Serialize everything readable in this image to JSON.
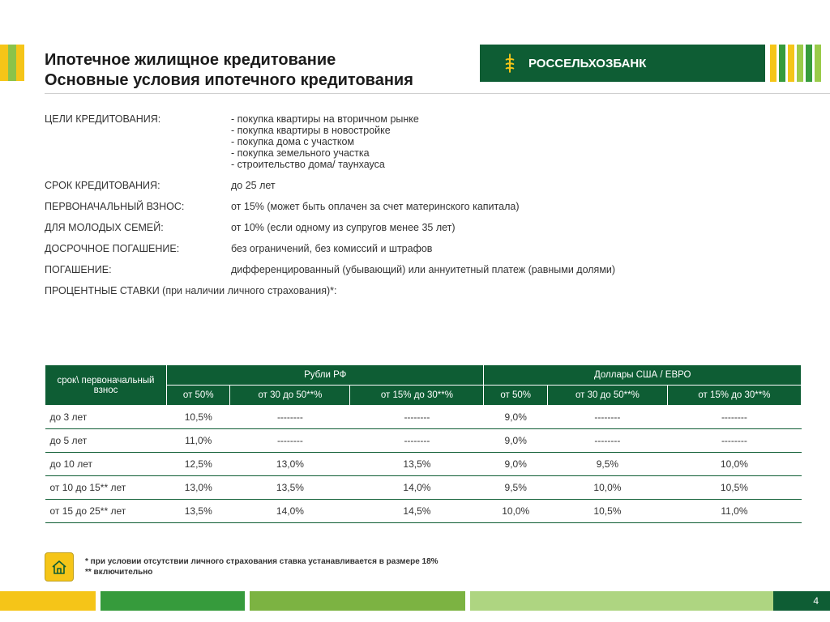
{
  "branding": {
    "bank_name": "РОССЕЛЬХОЗБАНК",
    "colors": {
      "primary_green": "#0e5d34",
      "yellow": "#f5c518",
      "light_green_1": "#369b3c",
      "light_green_2": "#9acb4a",
      "gray_underline": "#cfcfcf"
    }
  },
  "title": {
    "line1": "Ипотечное жилищное кредитование",
    "line2": "Основные условия ипотечного кредитования"
  },
  "purpose": {
    "label": "ЦЕЛИ КРЕДИТОВАНИЯ:",
    "items": [
      "покупка квартиры на вторичном рынке",
      "покупка квартиры в новостройке",
      "покупка дома с участком",
      "покупка земельного участка",
      "строительство дома/ таунхауса"
    ]
  },
  "term": {
    "label": "СРОК КРЕДИТОВАНИЯ:",
    "value": "до 25 лет"
  },
  "downpay": {
    "label": "ПЕРВОНАЧАЛЬНЫЙ ВЗНОС:",
    "value": "от 15% (может быть оплачен за счет материнского капитала)"
  },
  "young": {
    "label": "ДЛЯ МОЛОДЫХ СЕМЕЙ:",
    "value": "от 10% (если одному из супругов менее 35 лет)"
  },
  "early": {
    "label": "ДОСРОЧНОЕ ПОГАШЕНИЕ:",
    "value": "без ограничений, без комиссий и штрафов"
  },
  "repay": {
    "label": "ПОГАШЕНИЕ:",
    "value": "дифференцированный (убывающий) или аннуитетный платеж (равными долями)"
  },
  "rates_hdr": {
    "label": "ПРОЦЕНТНЫЕ СТАВКИ (при наличии личного страхования)*:"
  },
  "table": {
    "corner": "срок\\ первоначальный взнос",
    "currency_groups": [
      "Рубли РФ",
      "Доллары США / ЕВРО"
    ],
    "subcolumns": [
      "от 50%",
      "от 30 до 50**%",
      "от 15% до 30**%"
    ],
    "rows": [
      {
        "term": "до 3 лет",
        "rub": [
          "10,5%",
          "--------",
          "--------"
        ],
        "usd": [
          "9,0%",
          "--------",
          "--------"
        ]
      },
      {
        "term": "до 5 лет",
        "rub": [
          "11,0%",
          "--------",
          "--------"
        ],
        "usd": [
          "9,0%",
          "--------",
          "--------"
        ]
      },
      {
        "term": "до 10 лет",
        "rub": [
          "12,5%",
          "13,0%",
          "13,5%"
        ],
        "usd": [
          "9,0%",
          "9,5%",
          "10,0%"
        ]
      },
      {
        "term": "от 10 до 15** лет",
        "rub": [
          "13,0%",
          "13,5%",
          "14,0%"
        ],
        "usd": [
          "9,5%",
          "10,0%",
          "10,5%"
        ]
      },
      {
        "term": "от 15 до 25** лет",
        "rub": [
          "13,5%",
          "14,0%",
          "14,5%"
        ],
        "usd": [
          "10,0%",
          "10,5%",
          "11,0%"
        ]
      }
    ]
  },
  "footnotes": {
    "n1": "* при условии  отсутствии личного страхования ставка устанавливается в размере 18%",
    "n2": "** включительно"
  },
  "page": "4"
}
